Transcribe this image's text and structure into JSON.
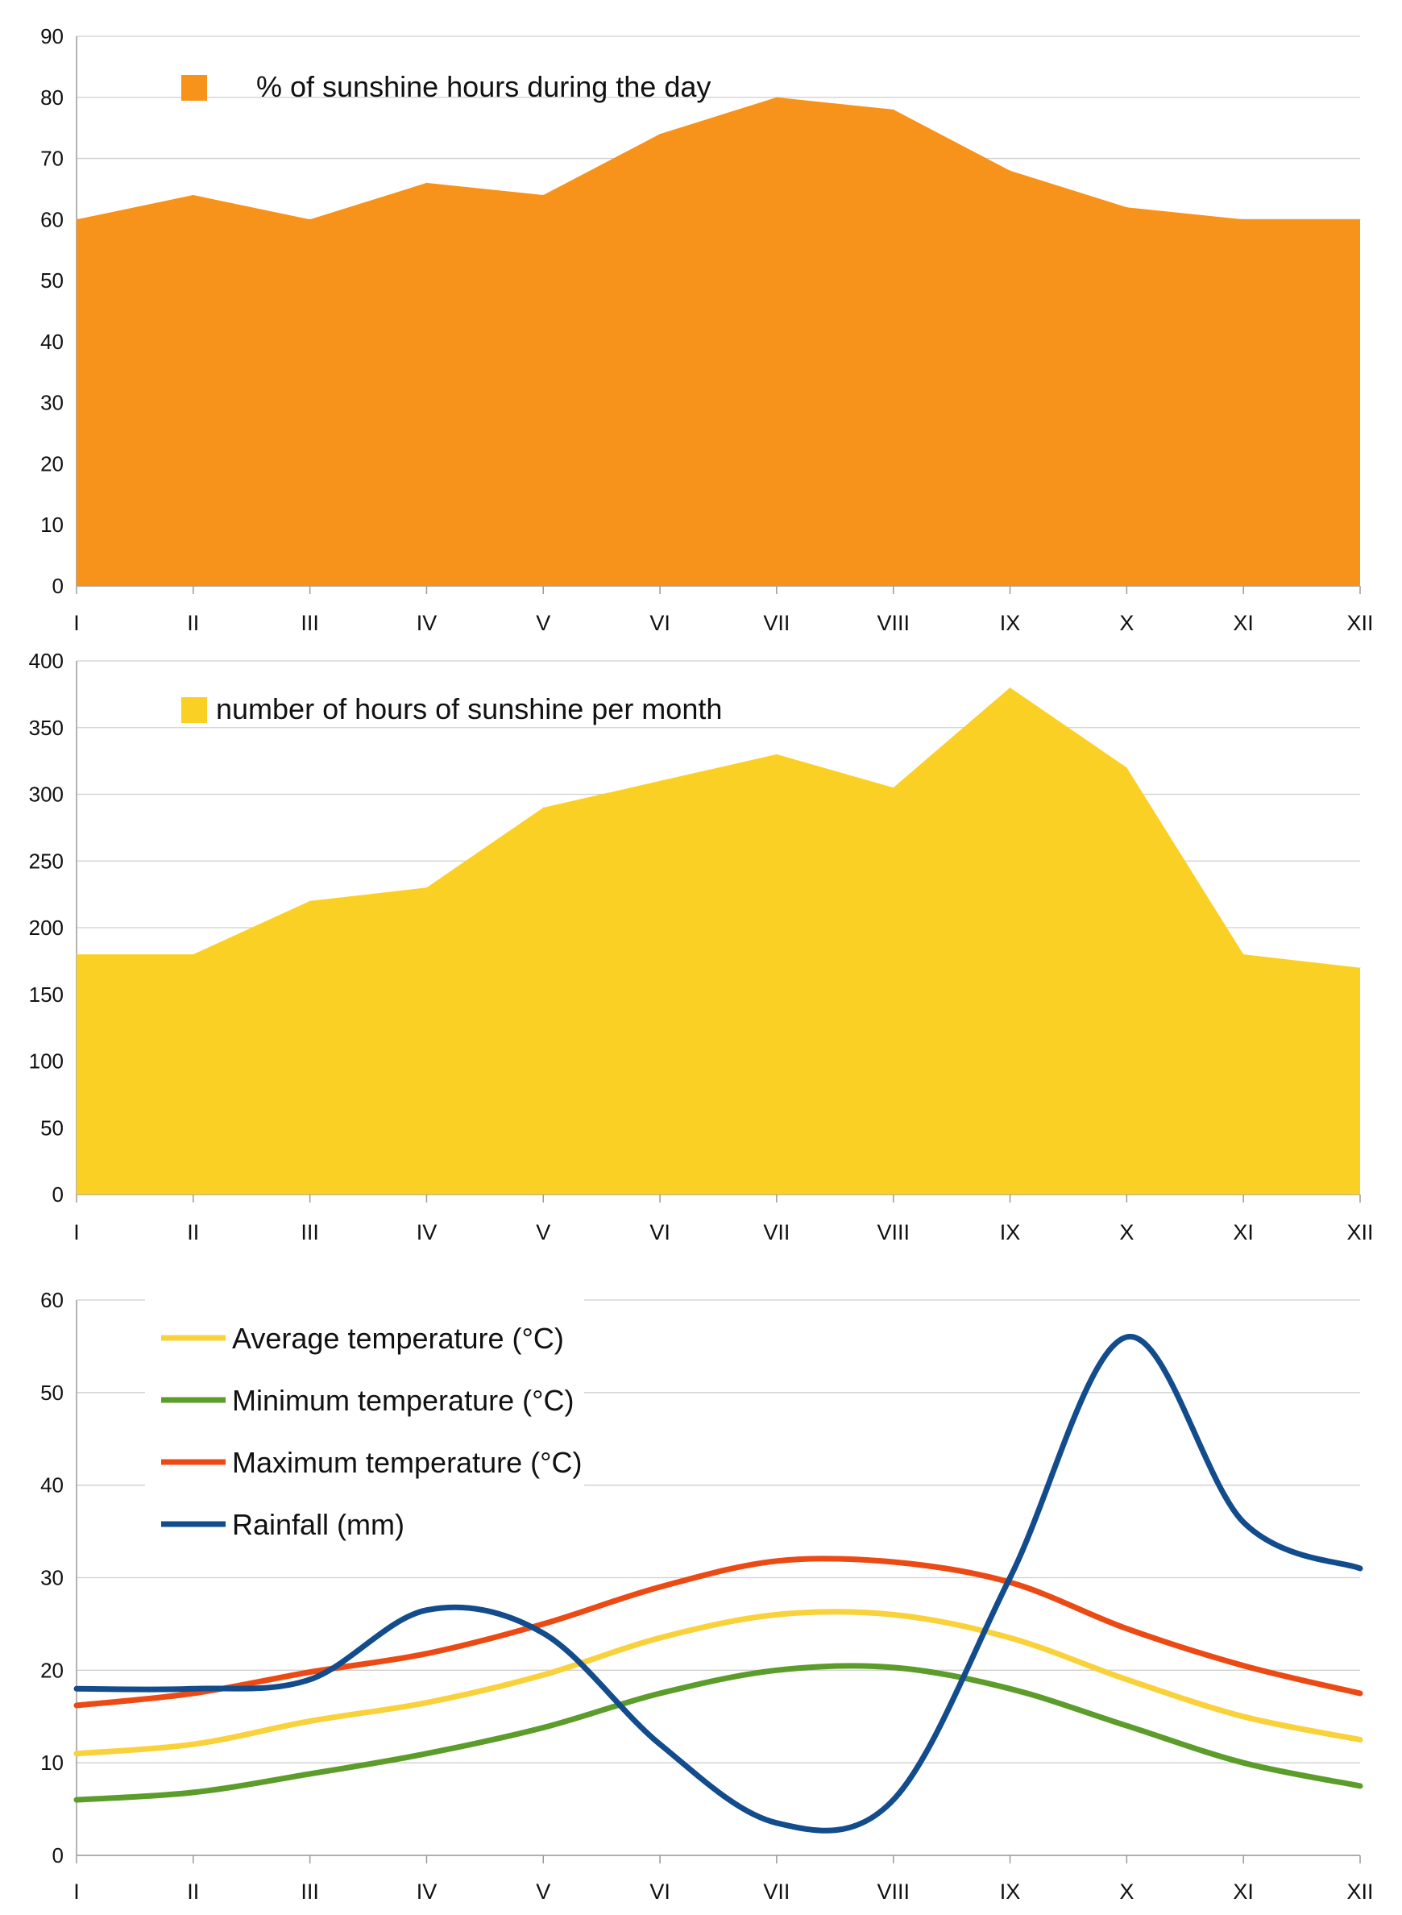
{
  "chart_data": [
    {
      "type": "area",
      "categories": [
        "I",
        "II",
        "III",
        "IV",
        "V",
        "VI",
        "VII",
        "VIII",
        "IX",
        "X",
        "XI",
        "XII"
      ],
      "series": [
        {
          "name": "% of sunshine hours during the day",
          "color": "#f7931a",
          "values": [
            60,
            64,
            60,
            66,
            64,
            74,
            80,
            78,
            68,
            62,
            60,
            60
          ]
        }
      ],
      "ylim": [
        0,
        90
      ],
      "yticks": [
        0,
        10,
        20,
        30,
        40,
        50,
        60,
        70,
        80,
        90
      ],
      "grid": true,
      "legend": "top-left"
    },
    {
      "type": "area",
      "categories": [
        "I",
        "II",
        "III",
        "IV",
        "V",
        "VI",
        "VII",
        "VIII",
        "IX",
        "X",
        "XI",
        "XII"
      ],
      "series": [
        {
          "name": "number of hours of sunshine per month",
          "color": "#fbd024",
          "values": [
            180,
            180,
            220,
            230,
            290,
            310,
            330,
            305,
            380,
            320,
            180,
            170
          ]
        }
      ],
      "ylim": [
        0,
        400
      ],
      "yticks": [
        0,
        50,
        100,
        150,
        200,
        250,
        300,
        350,
        400
      ],
      "grid": true,
      "legend": "top-left"
    },
    {
      "type": "line",
      "categories": [
        "I",
        "II",
        "III",
        "IV",
        "V",
        "VI",
        "VII",
        "VIII",
        "IX",
        "X",
        "XI",
        "XII"
      ],
      "series": [
        {
          "name": "Average temperature (°C)",
          "color": "#f9d13a",
          "values": [
            11,
            12,
            14.5,
            16.5,
            19.5,
            23.5,
            26,
            26,
            23.5,
            19,
            15,
            12.5
          ]
        },
        {
          "name": "Minimum temperature (°C)",
          "color": "#5c9c2b",
          "values": [
            6,
            6.8,
            8.8,
            11,
            13.8,
            17.5,
            20,
            20.3,
            18,
            14,
            10,
            7.5
          ]
        },
        {
          "name": "Maximum temperature (°C)",
          "color": "#ec4a14",
          "values": [
            16.2,
            17.5,
            19.8,
            21.8,
            25,
            29,
            31.8,
            31.7,
            29.5,
            24.5,
            20.5,
            17.5
          ]
        },
        {
          "name": "Rainfall (mm)",
          "color": "#124c8c",
          "values": [
            18,
            18,
            19,
            26.5,
            24,
            12,
            3.5,
            6,
            30,
            56,
            36,
            31
          ]
        }
      ],
      "ylim": [
        0,
        60
      ],
      "yticks": [
        0,
        10,
        20,
        30,
        40,
        50,
        60
      ],
      "grid": true,
      "legend": "top-left"
    }
  ]
}
